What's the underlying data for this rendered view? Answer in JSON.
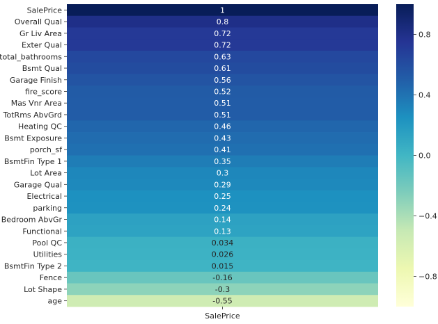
{
  "chart_data": {
    "type": "heatmap",
    "title": "",
    "xlabel": "",
    "ylabel": "",
    "x_categories": [
      "SalePrice"
    ],
    "rows": [
      {
        "label": "SalePrice",
        "value": 1,
        "text": "1"
      },
      {
        "label": "Overall Qual",
        "value": 0.8,
        "text": "0.8"
      },
      {
        "label": "Gr Liv Area",
        "value": 0.72,
        "text": "0.72"
      },
      {
        "label": "Exter Qual",
        "value": 0.72,
        "text": "0.72"
      },
      {
        "label": "total_bathrooms",
        "value": 0.63,
        "text": "0.63"
      },
      {
        "label": "Bsmt Qual",
        "value": 0.61,
        "text": "0.61"
      },
      {
        "label": "Garage Finish",
        "value": 0.56,
        "text": "0.56"
      },
      {
        "label": "fire_score",
        "value": 0.52,
        "text": "0.52"
      },
      {
        "label": "Mas Vnr Area",
        "value": 0.51,
        "text": "0.51"
      },
      {
        "label": "TotRms AbvGrd",
        "value": 0.51,
        "text": "0.51"
      },
      {
        "label": "Heating QC",
        "value": 0.46,
        "text": "0.46"
      },
      {
        "label": "Bsmt Exposure",
        "value": 0.43,
        "text": "0.43"
      },
      {
        "label": "porch_sf",
        "value": 0.41,
        "text": "0.41"
      },
      {
        "label": "BsmtFin Type 1",
        "value": 0.35,
        "text": "0.35"
      },
      {
        "label": "Lot Area",
        "value": 0.3,
        "text": "0.3"
      },
      {
        "label": "Garage Qual",
        "value": 0.29,
        "text": "0.29"
      },
      {
        "label": "Electrical",
        "value": 0.25,
        "text": "0.25"
      },
      {
        "label": "parking",
        "value": 0.24,
        "text": "0.24"
      },
      {
        "label": "Bedroom AbvGr",
        "value": 0.14,
        "text": "0.14"
      },
      {
        "label": "Functional",
        "value": 0.13,
        "text": "0.13"
      },
      {
        "label": "Pool QC",
        "value": 0.034,
        "text": "0.034"
      },
      {
        "label": "Utilities",
        "value": 0.026,
        "text": "0.026"
      },
      {
        "label": "BsmtFin Type 2",
        "value": 0.015,
        "text": "0.015"
      },
      {
        "label": "Fence",
        "value": -0.16,
        "text": "-0.16"
      },
      {
        "label": "Lot Shape",
        "value": -0.3,
        "text": "-0.3"
      },
      {
        "label": "age",
        "value": -0.55,
        "text": "-0.55"
      }
    ],
    "colorbar": {
      "colormap": "YlGnBu",
      "range": [
        -1,
        1
      ],
      "ticks": [
        0.8,
        0.4,
        0.0,
        -0.4,
        -0.8
      ],
      "tick_labels": [
        "0.8",
        "0.4",
        "0.0",
        "−0.4",
        "−0.8"
      ]
    },
    "grid": false
  }
}
